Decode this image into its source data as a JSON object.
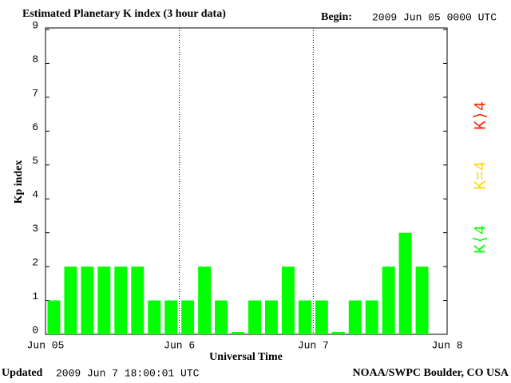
{
  "chart_data": {
    "type": "bar",
    "title": "Estimated Planetary K index (3 hour data)",
    "begin_label": "Begin:",
    "begin": "2009 Jun 05 0000 UTC",
    "ylabel": "Kp index",
    "xlabel": "Universal Time",
    "updated_label": "Updated",
    "updated": "2009 Jun  7 18:00:01 UTC",
    "source": "NOAA/SWPC Boulder, CO USA",
    "x": [
      0,
      3,
      6,
      9,
      12,
      15,
      18,
      21,
      24,
      27,
      30,
      33,
      36,
      39,
      42,
      45,
      48,
      51,
      54,
      57,
      60,
      63,
      66
    ],
    "values": [
      1,
      2,
      2,
      2,
      2,
      2,
      1,
      1,
      1,
      2,
      1,
      0,
      1,
      1,
      2,
      1,
      1,
      0,
      1,
      1,
      2,
      3,
      2
    ],
    "color": "#00ff00",
    "xlim": [
      0,
      72
    ],
    "xticks": [
      {
        "value": 0,
        "label": "Jun 05"
      },
      {
        "value": 24,
        "label": "Jun 6"
      },
      {
        "value": 48,
        "label": "Jun 7"
      },
      {
        "value": 72,
        "label": "Jun 8"
      }
    ],
    "ylim": [
      0,
      9
    ],
    "yticks": [
      0,
      1,
      2,
      3,
      4,
      5,
      6,
      7,
      8,
      9
    ],
    "legend": [
      {
        "label": "K⟨4",
        "color": "#00ff00"
      },
      {
        "label": "K=4",
        "color": "#ffd700"
      },
      {
        "label": "K⟩4",
        "color": "#ff2200"
      }
    ]
  }
}
